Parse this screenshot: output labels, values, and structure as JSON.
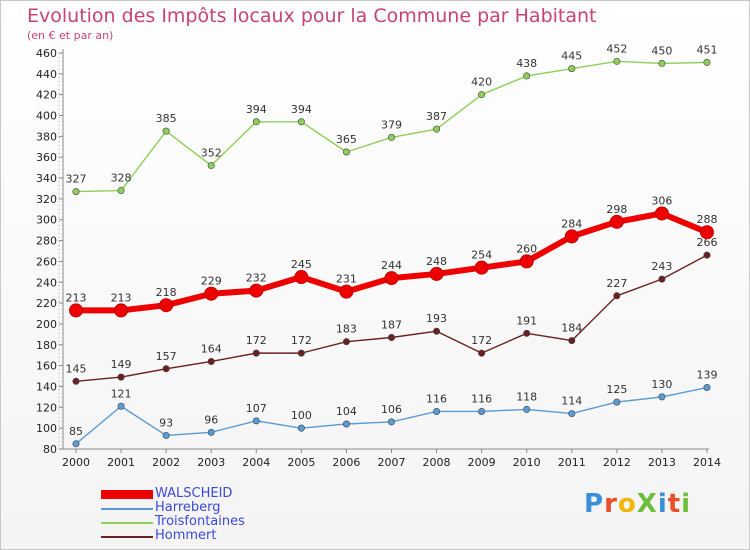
{
  "title": "Evolution des Impôts locaux pour la Commune par Habitant",
  "subtitle": "(en € et par an)",
  "logo_text": "ProXiti",
  "logo_colors": [
    "#3a8fd8",
    "#e8502a",
    "#f2b705",
    "#6cbf3a",
    "#3a8fd8",
    "#e8502a",
    "#6cbf3a"
  ],
  "chart_data": {
    "type": "line",
    "title": "Evolution des Impôts locaux pour la Commune par Habitant",
    "subtitle": "(en € et par an)",
    "xlabel": "",
    "ylabel": "",
    "x": [
      "2000",
      "2001",
      "2002",
      "2003",
      "2004",
      "2005",
      "2006",
      "2007",
      "2008",
      "2009",
      "2010",
      "2011",
      "2012",
      "2013",
      "2014"
    ],
    "y_ticks": [
      80,
      100,
      120,
      140,
      160,
      180,
      200,
      220,
      240,
      260,
      280,
      300,
      320,
      340,
      360,
      380,
      400,
      420,
      440,
      460
    ],
    "ylim": [
      80,
      460
    ],
    "grid": false,
    "legend_position": "bottom-left",
    "series": [
      {
        "name": "WALSCHEID",
        "color": "#ee0000",
        "values": [
          213,
          213,
          218,
          229,
          232,
          245,
          231,
          244,
          248,
          254,
          260,
          284,
          298,
          306,
          288
        ]
      },
      {
        "name": "Harreberg",
        "color": "#5b9bd5",
        "values": [
          85,
          121,
          93,
          96,
          107,
          100,
          104,
          106,
          116,
          116,
          118,
          114,
          125,
          130,
          139
        ]
      },
      {
        "name": "Troisfontaines",
        "color": "#8ccf5a",
        "values": [
          327,
          328,
          385,
          352,
          394,
          394,
          365,
          379,
          387,
          420,
          438,
          445,
          452,
          450,
          451
        ]
      },
      {
        "name": "Hommert",
        "color": "#6b2020",
        "values": [
          145,
          149,
          157,
          164,
          172,
          172,
          183,
          187,
          193,
          172,
          191,
          184,
          227,
          243,
          266
        ]
      }
    ]
  }
}
